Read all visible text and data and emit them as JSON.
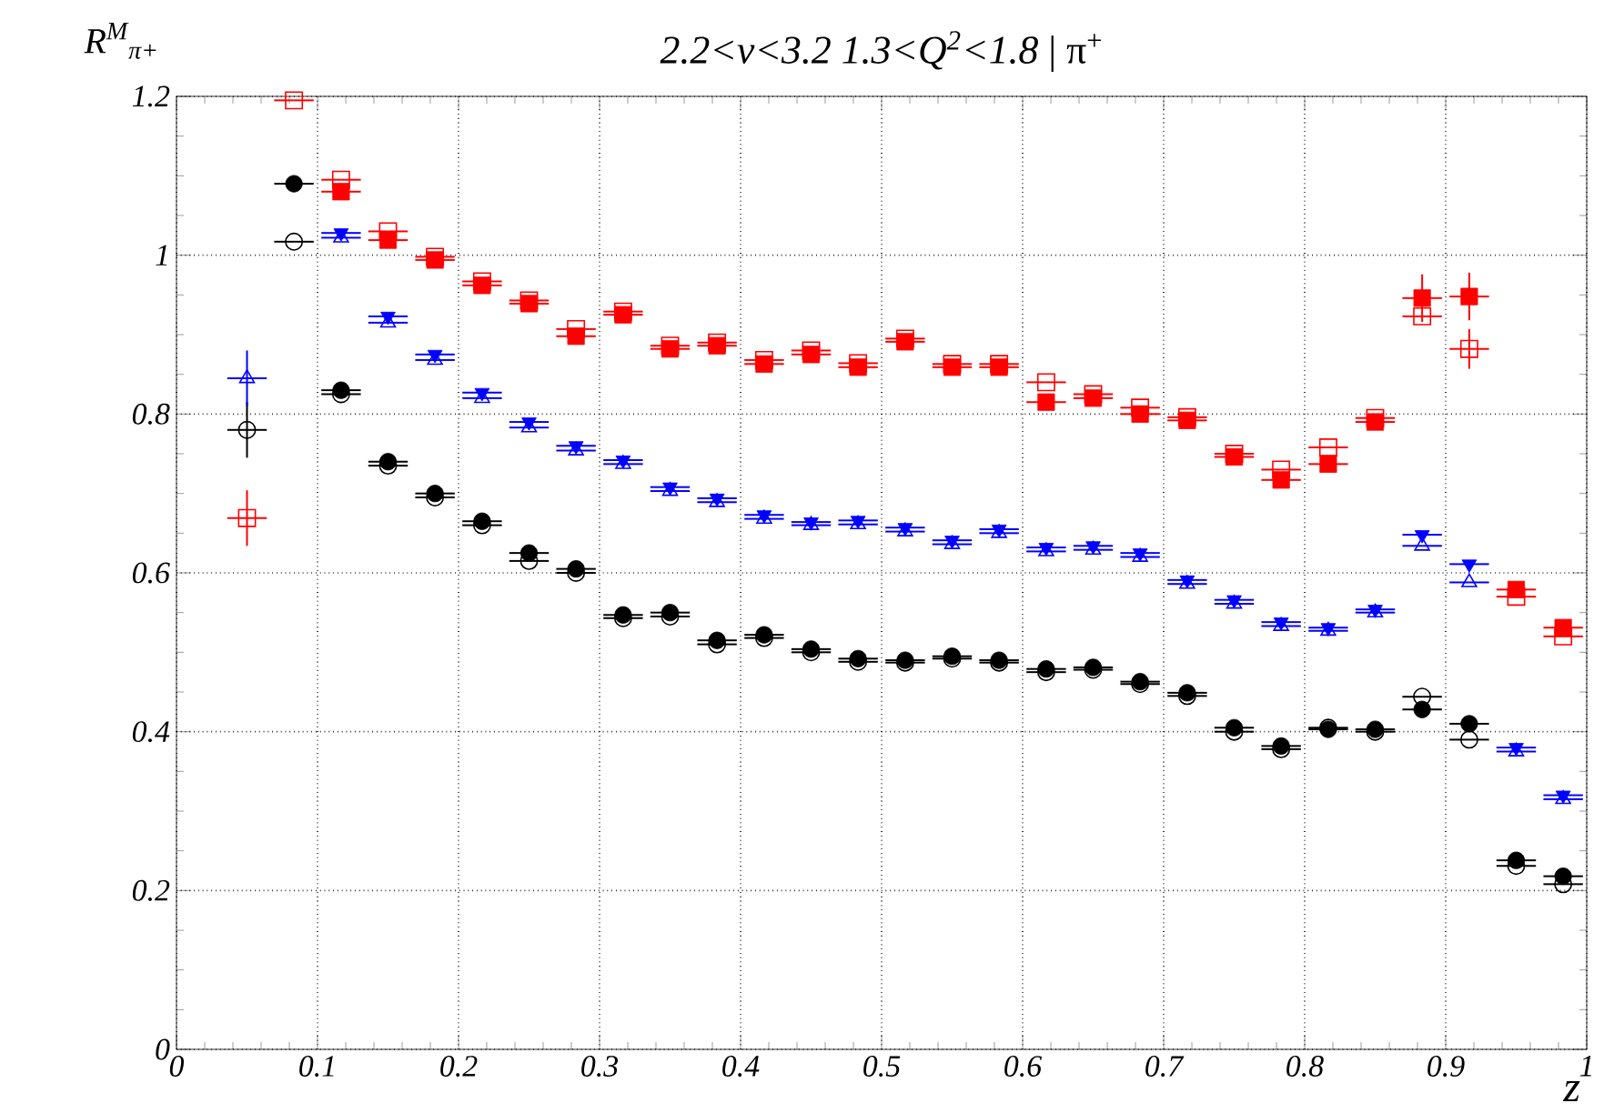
{
  "chart_data": {
    "type": "scatter",
    "title": "*2.2<ν<3.2 1.3<Q$^{2}$<1.8*  |  π$^{+}$",
    "xlabel": "z",
    "ylabel": "R$^{M}$$_{π+}$",
    "x": [
      0.05,
      0.0833,
      0.1167,
      0.15,
      0.1833,
      0.2167,
      0.25,
      0.2833,
      0.3167,
      0.35,
      0.3833,
      0.4167,
      0.45,
      0.4833,
      0.5167,
      0.55,
      0.5833,
      0.6167,
      0.65,
      0.6833,
      0.7167,
      0.75,
      0.7833,
      0.8167,
      0.85,
      0.8833,
      0.9167,
      0.95,
      0.9833
    ],
    "xlim": [
      0,
      1
    ],
    "ylim": [
      0,
      1.2
    ],
    "xticks": [
      0,
      0.1,
      0.2,
      0.3,
      0.4,
      0.5,
      0.6,
      0.7,
      0.8,
      0.9,
      1
    ],
    "yticks": [
      0,
      0.2,
      0.4,
      0.6,
      0.8,
      1,
      1.2
    ],
    "grid": true,
    "series": [
      {
        "color": "#000000",
        "marker": "circle",
        "values": [
          null,
          1.09,
          0.83,
          0.74,
          0.7,
          0.665,
          0.625,
          0.605,
          0.547,
          0.55,
          0.515,
          0.522,
          0.504,
          0.492,
          0.49,
          0.495,
          0.49,
          0.479,
          0.481,
          0.463,
          0.449,
          0.405,
          0.382,
          0.403,
          0.403,
          0.428,
          0.41,
          0.238,
          0.218
        ],
        "xerrors": [
          null,
          0.014,
          0.014,
          0.014,
          0.014,
          0.014,
          0.014,
          0.014,
          0.014,
          0.014,
          0.014,
          0.014,
          0.014,
          0.014,
          0.014,
          0.014,
          0.014,
          0.014,
          0.014,
          0.014,
          0.014,
          0.014,
          0.014,
          0.014,
          0.014,
          0.014,
          0.014,
          0.014,
          0.014
        ]
      },
      {
        "color": "#000000",
        "marker": "circle",
        "values": [
          0.78,
          1.017,
          0.825,
          0.735,
          0.695,
          0.66,
          0.615,
          0.6,
          0.543,
          0.545,
          0.51,
          0.518,
          0.5,
          0.488,
          0.487,
          0.492,
          0.487,
          0.475,
          0.478,
          0.46,
          0.445,
          0.4,
          0.378,
          0.405,
          0.4,
          0.444,
          0.39,
          0.231,
          0.208
        ],
        "xerrors": [
          0.014,
          0.014,
          0.014,
          0.014,
          0.014,
          0.014,
          0.014,
          0.014,
          0.014,
          0.014,
          0.014,
          0.014,
          0.014,
          0.014,
          0.014,
          0.014,
          0.014,
          0.014,
          0.014,
          0.014,
          0.014,
          0.014,
          0.014,
          0.014,
          0.014,
          0.014,
          0.014,
          0.014,
          0.014
        ],
        "errors": [
          0.035,
          null,
          null,
          null,
          null,
          null,
          null,
          null,
          null,
          null,
          null,
          null,
          null,
          null,
          null,
          null,
          null,
          null,
          null,
          null,
          null,
          null,
          null,
          null,
          null,
          null,
          null,
          null,
          null
        ]
      },
      {
        "color": "#0000ff",
        "marker": "triangle",
        "values": [
          null,
          null,
          1.028,
          0.923,
          0.875,
          0.827,
          0.79,
          0.76,
          0.742,
          0.708,
          0.694,
          0.673,
          0.664,
          0.666,
          0.657,
          0.641,
          0.655,
          0.632,
          0.634,
          0.625,
          0.591,
          0.566,
          0.538,
          0.531,
          0.554,
          0.648,
          0.611,
          0.38,
          0.32
        ],
        "xerrors": [
          null,
          null,
          0.014,
          0.014,
          0.014,
          0.014,
          0.014,
          0.014,
          0.014,
          0.014,
          0.014,
          0.014,
          0.014,
          0.014,
          0.014,
          0.014,
          0.014,
          0.014,
          0.014,
          0.014,
          0.014,
          0.014,
          0.014,
          0.014,
          0.014,
          0.014,
          0.014,
          0.014,
          0.014
        ]
      },
      {
        "color": "#0000ff",
        "marker": "triangle",
        "values": [
          0.845,
          null,
          1.022,
          0.915,
          0.868,
          0.82,
          0.783,
          0.754,
          0.737,
          0.703,
          0.689,
          0.668,
          0.66,
          0.661,
          0.652,
          0.636,
          0.65,
          0.627,
          0.629,
          0.62,
          0.586,
          0.561,
          0.533,
          0.527,
          0.55,
          0.634,
          0.588,
          0.375,
          0.315
        ],
        "xerrors": [
          0.014,
          null,
          0.014,
          0.014,
          0.014,
          0.014,
          0.014,
          0.014,
          0.014,
          0.014,
          0.014,
          0.014,
          0.014,
          0.014,
          0.014,
          0.014,
          0.014,
          0.014,
          0.014,
          0.014,
          0.014,
          0.014,
          0.014,
          0.014,
          0.014,
          0.014,
          0.014,
          0.014,
          0.014
        ],
        "errors": [
          0.035,
          null,
          null,
          null,
          null,
          null,
          null,
          null,
          null,
          null,
          null,
          null,
          null,
          null,
          null,
          null,
          null,
          null,
          null,
          null,
          null,
          null,
          null,
          null,
          null,
          null,
          null,
          null,
          null
        ]
      },
      {
        "color": "#ff0000",
        "marker": "square",
        "values": [
          null,
          null,
          1.08,
          1.019,
          0.994,
          0.962,
          0.939,
          0.898,
          0.925,
          0.882,
          0.886,
          0.863,
          0.875,
          0.859,
          0.891,
          0.859,
          0.859,
          0.815,
          0.82,
          0.8,
          0.792,
          0.746,
          0.717,
          0.737,
          0.79,
          0.946,
          0.948,
          0.579,
          0.531
        ],
        "xerrors": [
          null,
          null,
          0.014,
          0.014,
          0.014,
          0.014,
          0.014,
          0.014,
          0.014,
          0.014,
          0.014,
          0.014,
          0.014,
          0.014,
          0.014,
          0.014,
          0.014,
          0.014,
          0.014,
          0.014,
          0.014,
          0.014,
          0.014,
          0.014,
          0.014,
          0.014,
          0.014,
          0.014,
          0.014
        ],
        "errors": [
          null,
          null,
          null,
          null,
          null,
          null,
          null,
          null,
          null,
          null,
          null,
          null,
          null,
          null,
          null,
          null,
          null,
          null,
          null,
          null,
          null,
          null,
          null,
          null,
          null,
          0.03,
          0.03,
          null,
          null
        ]
      },
      {
        "color": "#ff0000",
        "marker": "square",
        "values": [
          0.669,
          1.195,
          1.095,
          1.03,
          0.998,
          0.967,
          0.943,
          0.907,
          0.929,
          0.886,
          0.89,
          0.868,
          0.88,
          0.864,
          0.895,
          0.863,
          0.863,
          0.84,
          0.825,
          0.808,
          0.796,
          0.75,
          0.73,
          0.758,
          0.795,
          0.923,
          0.882,
          0.57,
          0.52
        ],
        "xerrors": [
          0.014,
          0.014,
          0.014,
          0.014,
          0.014,
          0.014,
          0.014,
          0.014,
          0.014,
          0.014,
          0.014,
          0.014,
          0.014,
          0.014,
          0.014,
          0.014,
          0.014,
          0.014,
          0.014,
          0.014,
          0.014,
          0.014,
          0.014,
          0.014,
          0.014,
          0.014,
          0.014,
          0.014,
          0.014
        ],
        "errors": [
          0.035,
          null,
          null,
          null,
          null,
          null,
          null,
          null,
          null,
          null,
          null,
          null,
          null,
          null,
          null,
          null,
          null,
          null,
          null,
          null,
          null,
          null,
          null,
          null,
          null,
          null,
          0.025,
          null,
          null
        ]
      }
    ]
  }
}
